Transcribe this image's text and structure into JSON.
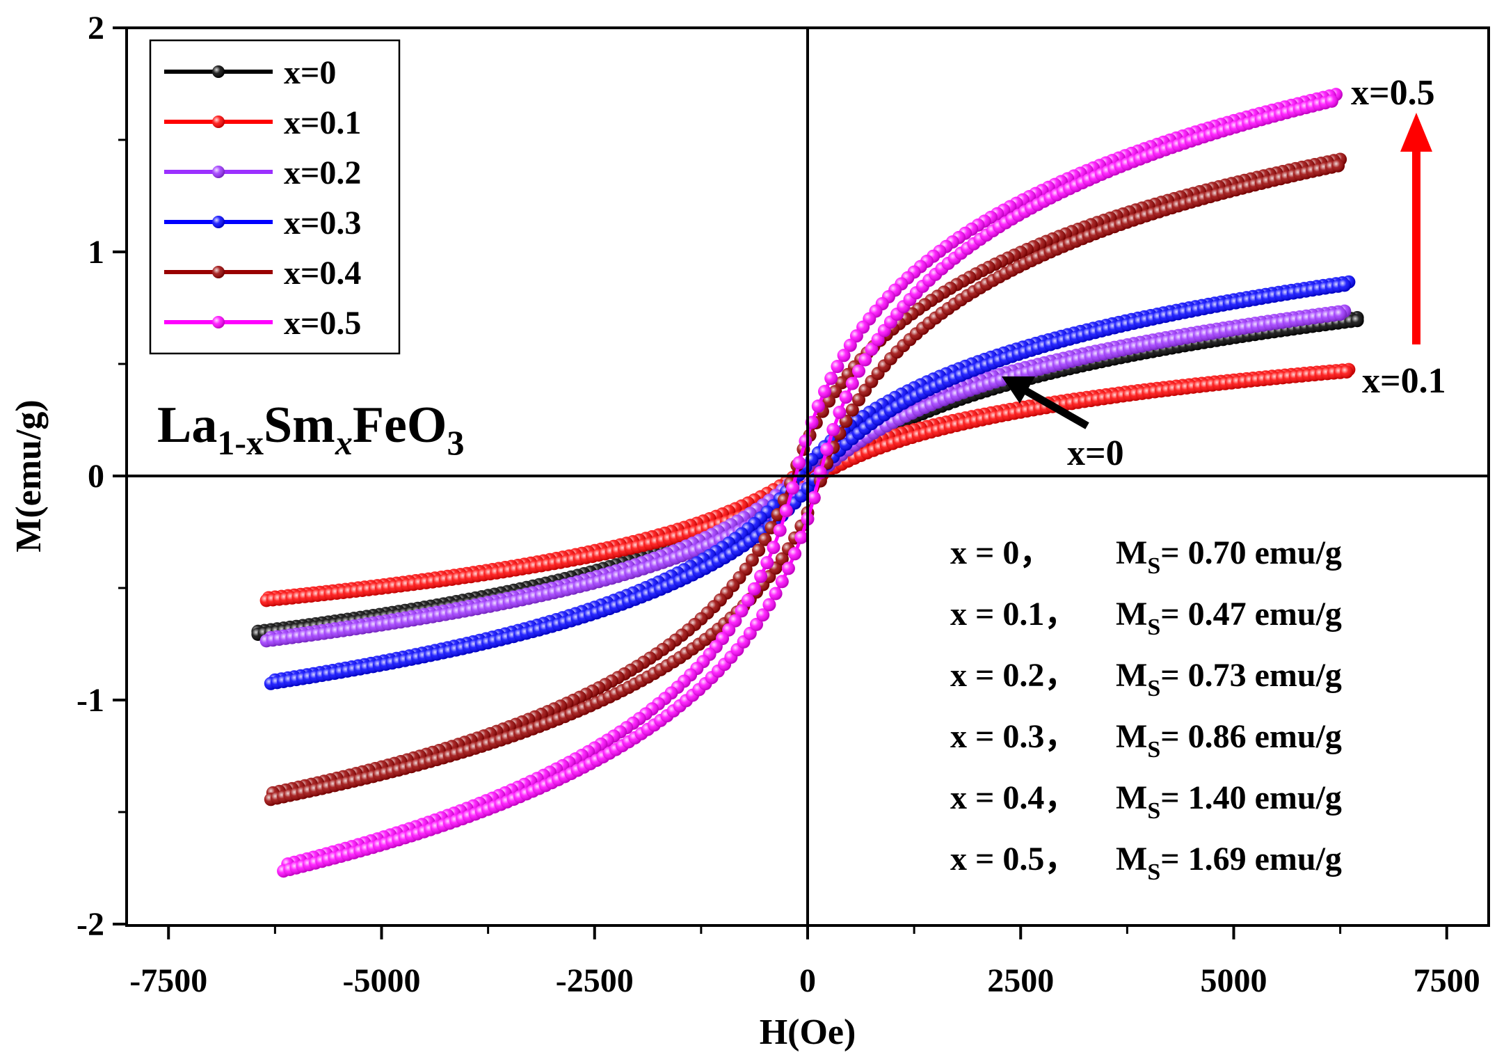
{
  "chart_data": {
    "type": "scatter",
    "title": "",
    "xlabel": "H(Oe)",
    "ylabel": "M(emu/g)",
    "xlim": [
      -8000,
      8000
    ],
    "ylim": [
      -2,
      2
    ],
    "x_ticks": [
      -7500,
      -5000,
      -2500,
      0,
      2500,
      5000,
      7500
    ],
    "x_tick_labels": [
      "-7500",
      "-5000",
      "-2500",
      "0",
      "2500",
      "5000",
      "7500"
    ],
    "y_ticks": [
      -2,
      -1,
      0,
      1,
      2
    ],
    "y_tick_labels": [
      "-2",
      "-1",
      "0",
      "1",
      "2"
    ],
    "legend_position": "top-left",
    "series": [
      {
        "name": "x=0",
        "color": "#000000",
        "ms": 0.7,
        "hmin": -6450,
        "hmax": 6450,
        "mneg": -0.7,
        "hc": 140,
        "k": 1.02
      },
      {
        "name": "x=0.1",
        "color": "#ff0000",
        "ms": 0.47,
        "hmin": -6350,
        "hmax": 6350,
        "mneg": -0.55,
        "hc": 150,
        "k": 1.0
      },
      {
        "name": "x=0.2",
        "color": "#9b30ff",
        "ms": 0.73,
        "hmin": -6350,
        "hmax": 6300,
        "mneg": -0.73,
        "hc": 120,
        "k": 1.1
      },
      {
        "name": "x=0.3",
        "color": "#0000ff",
        "ms": 0.86,
        "hmin": -6300,
        "hmax": 6350,
        "mneg": -0.92,
        "hc": 110,
        "k": 1.3
      },
      {
        "name": "x=0.4",
        "color": "#990000",
        "ms": 1.4,
        "hmin": -6300,
        "hmax": 6250,
        "mneg": -1.43,
        "hc": 170,
        "k": 2.1
      },
      {
        "name": "x=0.5",
        "color": "#ff00ff",
        "ms": 1.69,
        "hmin": -6150,
        "hmax": 6200,
        "mneg": -1.75,
        "hc": 140,
        "k": 2.6
      }
    ],
    "compound": {
      "base": "La",
      "sub1": "1-x",
      "mid": "Sm",
      "sub2": "x",
      "tail": "FeO",
      "sub3": "3"
    },
    "annotations": {
      "top_right": "x=0.5",
      "right": "x=0.1",
      "center": "x=0",
      "arrow_color": "#ff0000"
    },
    "ms_table": [
      {
        "x_label": "x = 0，",
        "m": "M",
        "sub": "S",
        "value": "= 0.70 emu/g"
      },
      {
        "x_label": "x = 0.1，",
        "m": "M",
        "sub": "S",
        "value": "= 0.47 emu/g"
      },
      {
        "x_label": "x = 0.2，",
        "m": "M",
        "sub": "S",
        "value": "= 0.73 emu/g"
      },
      {
        "x_label": "x = 0.3，",
        "m": "M",
        "sub": "S",
        "value": "= 0.86 emu/g"
      },
      {
        "x_label": "x = 0.4，",
        "m": "M",
        "sub": "S",
        "value": "= 1.40 emu/g"
      },
      {
        "x_label": "x = 0.5，",
        "m": "M",
        "sub": "S",
        "value": "= 1.69 emu/g"
      }
    ]
  }
}
